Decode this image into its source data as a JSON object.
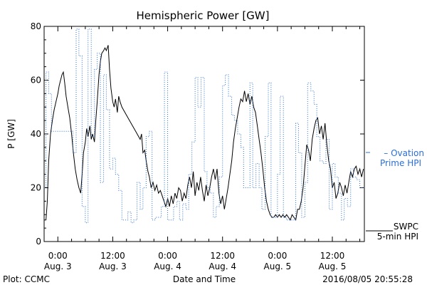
{
  "chart_data": {
    "type": "line",
    "title": "Hemispheric Power [GW]",
    "xlabel": "Date and Time",
    "ylabel": "P [GW]",
    "ylim": [
      0,
      80
    ],
    "yticks": [
      0,
      20,
      40,
      60,
      80
    ],
    "grid": false,
    "legend_position": "right",
    "x_unit": "hours since 2016-08-03 00:00",
    "xlim": [
      -3,
      67
    ],
    "xticks": [
      {
        "x": 0,
        "time": "0:00",
        "date": "Aug. 3"
      },
      {
        "x": 12,
        "time": "12:00",
        "date": "Aug. 3"
      },
      {
        "x": 24,
        "time": "0:00",
        "date": "Aug. 4"
      },
      {
        "x": 36,
        "time": "12:00",
        "date": "Aug. 4"
      },
      {
        "x": 48,
        "time": "0:00",
        "date": "Aug. 5"
      },
      {
        "x": 60,
        "time": "12:00",
        "date": "Aug. 5"
      }
    ],
    "series": [
      {
        "name": "SWPC 5-min HPI",
        "legend_lines": [
          "SWPC",
          "5-min HPI"
        ],
        "color": "#000000",
        "style": "solid",
        "points": [
          [
            -3.0,
            8
          ],
          [
            -2.6,
            8
          ],
          [
            -2.3,
            15
          ],
          [
            -2.0,
            30
          ],
          [
            -1.6,
            40
          ],
          [
            -1.2,
            45
          ],
          [
            -0.8,
            49
          ],
          [
            -0.4,
            52
          ],
          [
            0.0,
            55
          ],
          [
            0.3,
            58
          ],
          [
            0.6,
            60
          ],
          [
            0.9,
            62
          ],
          [
            1.2,
            63
          ],
          [
            1.5,
            59
          ],
          [
            1.8,
            54
          ],
          [
            2.2,
            50
          ],
          [
            2.6,
            46
          ],
          [
            3.0,
            40
          ],
          [
            3.4,
            33
          ],
          [
            3.8,
            27
          ],
          [
            4.2,
            23
          ],
          [
            4.6,
            20
          ],
          [
            5.0,
            18
          ],
          [
            5.3,
            25
          ],
          [
            5.6,
            33
          ],
          [
            6.0,
            37
          ],
          [
            6.3,
            42
          ],
          [
            6.6,
            39
          ],
          [
            7.0,
            43
          ],
          [
            7.3,
            38
          ],
          [
            7.6,
            40
          ],
          [
            8.0,
            37
          ],
          [
            8.3,
            45
          ],
          [
            8.6,
            52
          ],
          [
            9.0,
            62
          ],
          [
            9.3,
            67
          ],
          [
            9.6,
            70
          ],
          [
            10.0,
            71
          ],
          [
            10.3,
            72
          ],
          [
            10.6,
            71
          ],
          [
            11.0,
            73
          ],
          [
            11.3,
            64
          ],
          [
            11.6,
            57
          ],
          [
            12.0,
            52
          ],
          [
            12.3,
            50
          ],
          [
            12.6,
            53
          ],
          [
            13.0,
            48
          ],
          [
            13.3,
            54
          ],
          [
            13.6,
            52
          ],
          [
            14.0,
            50
          ],
          [
            15.0,
            47
          ],
          [
            16.0,
            44
          ],
          [
            17.0,
            41
          ],
          [
            18.0,
            38
          ],
          [
            18.3,
            40
          ],
          [
            18.6,
            33
          ],
          [
            19.0,
            34
          ],
          [
            19.3,
            30
          ],
          [
            19.7,
            26
          ],
          [
            20.0,
            24
          ],
          [
            20.4,
            20
          ],
          [
            20.8,
            22
          ],
          [
            21.2,
            19
          ],
          [
            21.6,
            21
          ],
          [
            22.0,
            18
          ],
          [
            22.4,
            19
          ],
          [
            22.8,
            17
          ],
          [
            23.2,
            15
          ],
          [
            23.6,
            13
          ],
          [
            24.0,
            16
          ],
          [
            24.4,
            13
          ],
          [
            24.8,
            17
          ],
          [
            25.2,
            14
          ],
          [
            25.6,
            18
          ],
          [
            26.0,
            16
          ],
          [
            26.4,
            20
          ],
          [
            26.8,
            19
          ],
          [
            27.2,
            15
          ],
          [
            27.6,
            18
          ],
          [
            28.0,
            16
          ],
          [
            28.4,
            21
          ],
          [
            28.8,
            24
          ],
          [
            29.2,
            20
          ],
          [
            29.6,
            26
          ],
          [
            30.0,
            17
          ],
          [
            30.4,
            22
          ],
          [
            30.8,
            19
          ],
          [
            31.2,
            24
          ],
          [
            31.6,
            19
          ],
          [
            32.0,
            15
          ],
          [
            32.4,
            21
          ],
          [
            32.8,
            17
          ],
          [
            33.2,
            20
          ],
          [
            33.6,
            24
          ],
          [
            34.0,
            27
          ],
          [
            34.4,
            23
          ],
          [
            34.8,
            27
          ],
          [
            35.2,
            18
          ],
          [
            35.6,
            14
          ],
          [
            36.0,
            17
          ],
          [
            36.4,
            12
          ],
          [
            36.8,
            16
          ],
          [
            37.2,
            20
          ],
          [
            37.6,
            25
          ],
          [
            38.0,
            30
          ],
          [
            38.4,
            37
          ],
          [
            38.8,
            42
          ],
          [
            39.2,
            46
          ],
          [
            39.6,
            50
          ],
          [
            40.0,
            53
          ],
          [
            40.4,
            52
          ],
          [
            40.8,
            56
          ],
          [
            41.2,
            52
          ],
          [
            41.6,
            55
          ],
          [
            42.0,
            51
          ],
          [
            42.4,
            54
          ],
          [
            42.8,
            50
          ],
          [
            43.2,
            48
          ],
          [
            43.6,
            43
          ],
          [
            44.0,
            38
          ],
          [
            44.4,
            33
          ],
          [
            44.8,
            27
          ],
          [
            45.2,
            20
          ],
          [
            45.6,
            15
          ],
          [
            46.0,
            12
          ],
          [
            46.4,
            10
          ],
          [
            46.8,
            9
          ],
          [
            47.2,
            9
          ],
          [
            47.6,
            10
          ],
          [
            48.0,
            9
          ],
          [
            48.4,
            10
          ],
          [
            48.8,
            9
          ],
          [
            49.2,
            10
          ],
          [
            49.6,
            9
          ],
          [
            50.0,
            10
          ],
          [
            50.4,
            9
          ],
          [
            50.8,
            8
          ],
          [
            51.2,
            10
          ],
          [
            51.6,
            9
          ],
          [
            52.0,
            8
          ],
          [
            52.4,
            12
          ],
          [
            52.8,
            12
          ],
          [
            53.2,
            15
          ],
          [
            53.6,
            20
          ],
          [
            54.0,
            28
          ],
          [
            54.4,
            36
          ],
          [
            54.8,
            34
          ],
          [
            55.2,
            30
          ],
          [
            55.6,
            38
          ],
          [
            56.0,
            42
          ],
          [
            56.4,
            45
          ],
          [
            56.8,
            46
          ],
          [
            57.2,
            40
          ],
          [
            57.6,
            43
          ],
          [
            58.0,
            38
          ],
          [
            58.4,
            44
          ],
          [
            58.8,
            36
          ],
          [
            59.2,
            30
          ],
          [
            59.6,
            27
          ],
          [
            60.0,
            20
          ],
          [
            60.4,
            22
          ],
          [
            60.8,
            16
          ],
          [
            61.2,
            18
          ],
          [
            61.6,
            22
          ],
          [
            62.0,
            20
          ],
          [
            62.4,
            17
          ],
          [
            62.8,
            21
          ],
          [
            63.2,
            18
          ],
          [
            63.6,
            22
          ],
          [
            64.0,
            26
          ],
          [
            64.4,
            24
          ],
          [
            64.8,
            27
          ],
          [
            65.2,
            28
          ],
          [
            65.6,
            25
          ],
          [
            66.0,
            27
          ],
          [
            66.4,
            24
          ],
          [
            66.8,
            27
          ]
        ]
      },
      {
        "name": "Ovation Prime HPI",
        "legend_lines": [
          "Ovation",
          "Prime HPI"
        ],
        "color": "#2b6fd6",
        "style": "dotted-step",
        "points": [
          [
            -3.0,
            20
          ],
          [
            -2.6,
            63
          ],
          [
            -2.0,
            55
          ],
          [
            -1.4,
            41
          ],
          [
            -0.7,
            41
          ],
          [
            0.0,
            41
          ],
          [
            0.7,
            41
          ],
          [
            1.4,
            41
          ],
          [
            2.0,
            41
          ],
          [
            2.6,
            41
          ],
          [
            3.3,
            33
          ],
          [
            4.0,
            79
          ],
          [
            4.6,
            69
          ],
          [
            5.3,
            13
          ],
          [
            6.0,
            7
          ],
          [
            6.6,
            79
          ],
          [
            7.3,
            39
          ],
          [
            8.0,
            64
          ],
          [
            8.6,
            70
          ],
          [
            9.3,
            22
          ],
          [
            10.0,
            62
          ],
          [
            10.6,
            49
          ],
          [
            11.3,
            27
          ],
          [
            12.0,
            31
          ],
          [
            12.6,
            25
          ],
          [
            13.3,
            19
          ],
          [
            14.0,
            8
          ],
          [
            14.6,
            8
          ],
          [
            15.3,
            11
          ],
          [
            16.0,
            7
          ],
          [
            16.6,
            8
          ],
          [
            17.3,
            22
          ],
          [
            18.0,
            12
          ],
          [
            18.6,
            20
          ],
          [
            19.3,
            39
          ],
          [
            20.0,
            41
          ],
          [
            20.6,
            8
          ],
          [
            21.3,
            9
          ],
          [
            22.0,
            9
          ],
          [
            22.6,
            13
          ],
          [
            23.3,
            63
          ],
          [
            24.0,
            8
          ],
          [
            24.6,
            8
          ],
          [
            25.3,
            13
          ],
          [
            26.0,
            15
          ],
          [
            26.6,
            8
          ],
          [
            27.3,
            14
          ],
          [
            28.0,
            12
          ],
          [
            28.6,
            25
          ],
          [
            29.3,
            37
          ],
          [
            30.0,
            61
          ],
          [
            30.6,
            50
          ],
          [
            31.3,
            61
          ],
          [
            32.0,
            26
          ],
          [
            32.6,
            20
          ],
          [
            33.3,
            18
          ],
          [
            34.0,
            9
          ],
          [
            34.6,
            13
          ],
          [
            35.3,
            24
          ],
          [
            36.0,
            58
          ],
          [
            36.6,
            62
          ],
          [
            37.3,
            54
          ],
          [
            38.0,
            47
          ],
          [
            38.6,
            45
          ],
          [
            39.3,
            40
          ],
          [
            40.0,
            35
          ],
          [
            40.6,
            20
          ],
          [
            41.3,
            20
          ],
          [
            42.0,
            59
          ],
          [
            42.6,
            20
          ],
          [
            43.3,
            29
          ],
          [
            44.0,
            20
          ],
          [
            44.6,
            12
          ],
          [
            45.3,
            39
          ],
          [
            46.0,
            59
          ],
          [
            46.6,
            9
          ],
          [
            47.3,
            9
          ],
          [
            48.0,
            25
          ],
          [
            48.6,
            54
          ],
          [
            49.3,
            9
          ],
          [
            50.0,
            8
          ],
          [
            50.6,
            8
          ],
          [
            51.3,
            8
          ],
          [
            52.0,
            44
          ],
          [
            52.6,
            33
          ],
          [
            53.3,
            9
          ],
          [
            54.0,
            22
          ],
          [
            54.6,
            59
          ],
          [
            55.3,
            56
          ],
          [
            56.0,
            51
          ],
          [
            56.6,
            39
          ],
          [
            57.3,
            30
          ],
          [
            58.0,
            29
          ],
          [
            58.6,
            38
          ],
          [
            59.3,
            12
          ],
          [
            60.0,
            29
          ],
          [
            60.6,
            24
          ],
          [
            61.3,
            18
          ],
          [
            62.0,
            8
          ],
          [
            62.6,
            16
          ],
          [
            63.3,
            13
          ],
          [
            64.0,
            27
          ],
          [
            64.6,
            24
          ],
          [
            65.3,
            23
          ],
          [
            66.0,
            20
          ],
          [
            66.6,
            20
          ]
        ]
      }
    ]
  },
  "footer": {
    "plot_credit": "Plot: CCMC",
    "timestamp": "2016/08/05 20:55:28"
  }
}
